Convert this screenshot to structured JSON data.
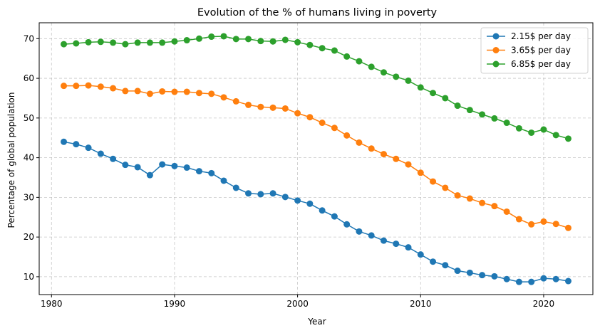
{
  "chart_data": {
    "type": "line",
    "title": "Evolution of the % of humans living in poverty",
    "xlabel": "Year",
    "ylabel": "Percentage of global population",
    "xlim": [
      1979,
      2024
    ],
    "ylim": [
      5.5,
      74
    ],
    "xticks": [
      1980,
      1990,
      2000,
      2010,
      2020
    ],
    "yticks": [
      10,
      20,
      30,
      40,
      50,
      60,
      70
    ],
    "grid": true,
    "legend_position": "top-right",
    "x": [
      1981,
      1982,
      1983,
      1984,
      1985,
      1986,
      1987,
      1988,
      1989,
      1990,
      1991,
      1992,
      1993,
      1994,
      1995,
      1996,
      1997,
      1998,
      1999,
      2000,
      2001,
      2002,
      2003,
      2004,
      2005,
      2006,
      2007,
      2008,
      2009,
      2010,
      2011,
      2012,
      2013,
      2014,
      2015,
      2016,
      2017,
      2018,
      2019,
      2020,
      2021,
      2022
    ],
    "series": [
      {
        "name": "2.15$ per day",
        "color": "#1f77b4",
        "values": [
          44.0,
          43.4,
          42.5,
          41.0,
          39.7,
          38.2,
          37.6,
          35.6,
          38.3,
          37.9,
          37.5,
          36.6,
          36.1,
          34.2,
          32.4,
          31.0,
          30.8,
          31.0,
          30.1,
          29.2,
          28.4,
          26.7,
          25.2,
          23.2,
          21.4,
          20.4,
          19.1,
          18.3,
          17.4,
          15.6,
          13.8,
          12.9,
          11.5,
          11.0,
          10.4,
          10.1,
          9.4,
          8.7,
          8.7,
          9.6,
          9.4,
          8.9
        ]
      },
      {
        "name": "3.65$ per day",
        "color": "#ff7f0e",
        "values": [
          58.1,
          58.1,
          58.2,
          57.9,
          57.5,
          56.8,
          56.8,
          56.1,
          56.7,
          56.6,
          56.6,
          56.3,
          56.1,
          55.2,
          54.2,
          53.3,
          52.8,
          52.6,
          52.4,
          51.2,
          50.2,
          48.8,
          47.5,
          45.6,
          43.8,
          42.3,
          40.9,
          39.7,
          38.3,
          36.2,
          34.0,
          32.4,
          30.5,
          29.7,
          28.6,
          27.8,
          26.4,
          24.5,
          23.2,
          23.9,
          23.3,
          22.3
        ]
      },
      {
        "name": "6.85$ per day",
        "color": "#2ca02c",
        "values": [
          68.6,
          68.8,
          69.1,
          69.2,
          69.0,
          68.6,
          69.0,
          69.0,
          69.0,
          69.3,
          69.6,
          70.0,
          70.5,
          70.6,
          69.9,
          69.9,
          69.4,
          69.3,
          69.7,
          69.1,
          68.4,
          67.6,
          67.0,
          65.5,
          64.3,
          62.9,
          61.5,
          60.4,
          59.4,
          57.7,
          56.3,
          55.0,
          53.1,
          52.0,
          50.9,
          49.9,
          48.8,
          47.4,
          46.3,
          47.1,
          45.7,
          44.8
        ]
      }
    ]
  }
}
